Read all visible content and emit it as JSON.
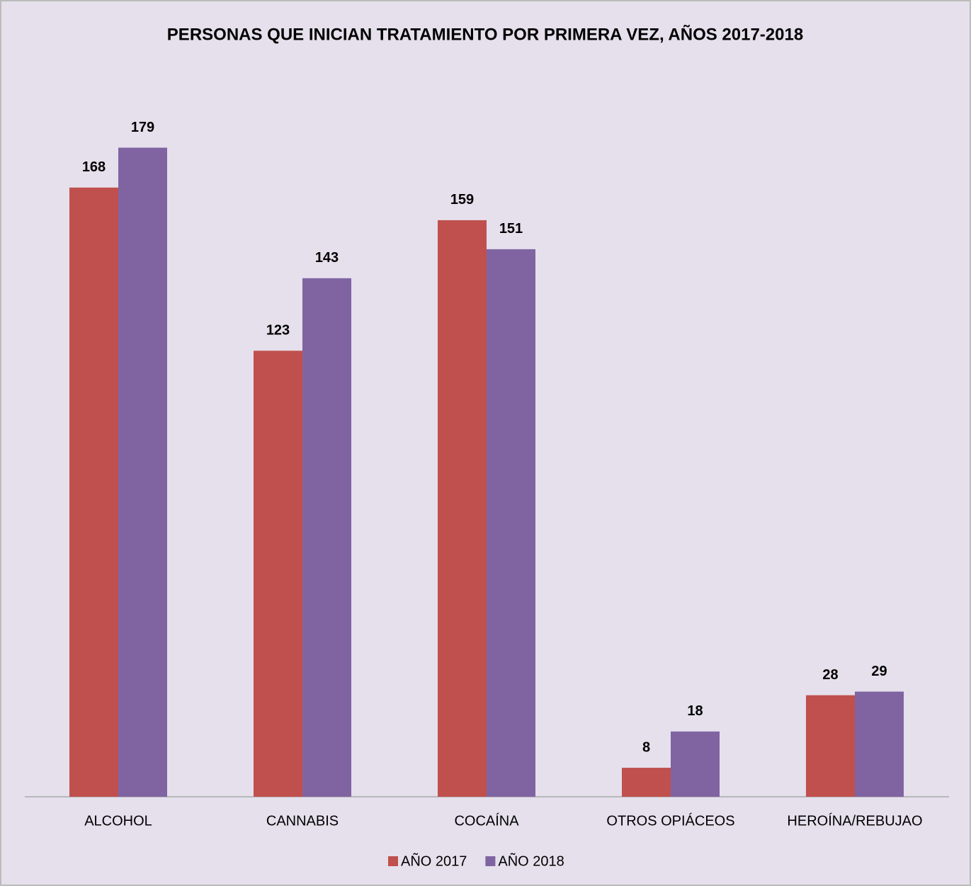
{
  "chart_data": {
    "type": "bar",
    "title": "PERSONAS QUE INICIAN TRATAMIENTO POR PRIMERA VEZ, AÑOS 2017-2018",
    "categories": [
      "ALCOHOL",
      "CANNABIS",
      "COCAÍNA",
      "OTROS OPIÁCEOS",
      "HEROÍNA/REBUJAO"
    ],
    "series": [
      {
        "name": "AÑO 2017",
        "color": "#c0504d",
        "values": [
          168,
          123,
          159,
          8,
          28
        ]
      },
      {
        "name": "AÑO 2018",
        "color": "#8064a2",
        "values": [
          179,
          143,
          151,
          18,
          29
        ]
      }
    ],
    "ylim": [
      0,
      200
    ],
    "legend": "bottom"
  }
}
